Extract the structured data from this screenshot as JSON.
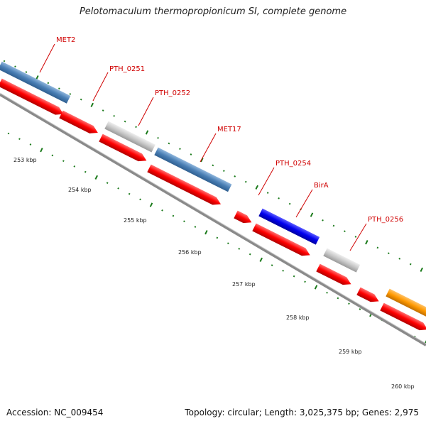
{
  "title": "Pelotomaculum thermopropionicum SI, complete genome",
  "footer": {
    "accession": "Accession: NC_009454",
    "summary": "Topology: circular; Length: 3,025,375 bp; Genes: 2,975"
  },
  "colors": {
    "backbone": "#8a8a8a",
    "cds": "#ff0000",
    "gene_steelblue": "#4a7fb5",
    "gene_gray": "#c8c8c8",
    "gene_blue": "#0000ee",
    "gene_orange": "#ff9900",
    "label": "#d00000",
    "tick": "#1a7a1a"
  },
  "gene_labels": [
    "MET2",
    "PTH_0251",
    "PTH_0252",
    "MET17",
    "PTH_0254",
    "BirA",
    "PTH_0256"
  ],
  "kbp_labels": [
    "253 kbp",
    "254 kbp",
    "255 kbp",
    "256 kbp",
    "257 kbp",
    "258 kbp",
    "259 kbp",
    "260 kbp"
  ]
}
